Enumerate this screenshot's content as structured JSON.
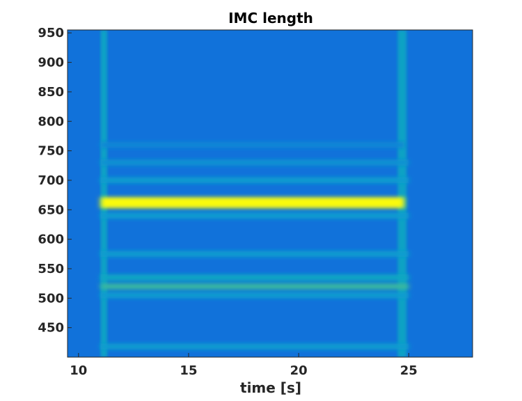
{
  "chart_data": {
    "type": "heatmap",
    "title": "IMC length",
    "xlabel": "time [s]",
    "ylabel": "",
    "xlim": [
      9.5,
      27.9
    ],
    "ylim": [
      400,
      955
    ],
    "x_ticks": [
      10,
      15,
      20,
      25
    ],
    "y_ticks": [
      450,
      500,
      550,
      600,
      650,
      700,
      750,
      800,
      850,
      900,
      950
    ],
    "colormap": "parula",
    "background_level": 0.25,
    "events": [
      {
        "x_start": 11.0,
        "x_end": 11.3,
        "level": 0.5
      },
      {
        "x_start": 24.5,
        "x_end": 24.9,
        "level": 0.5
      }
    ],
    "bands": [
      {
        "y": 662,
        "x_start": 11.0,
        "x_end": 24.8,
        "level": 1.0
      },
      {
        "y": 520,
        "x_start": 11.0,
        "x_end": 25.0,
        "level": 0.6
      },
      {
        "y": 535,
        "x_start": 11.0,
        "x_end": 25.0,
        "level": 0.5
      },
      {
        "y": 505,
        "x_start": 11.0,
        "x_end": 25.0,
        "level": 0.45
      },
      {
        "y": 575,
        "x_start": 11.0,
        "x_end": 25.0,
        "level": 0.45
      },
      {
        "y": 700,
        "x_start": 11.0,
        "x_end": 25.0,
        "level": 0.45
      },
      {
        "y": 730,
        "x_start": 11.0,
        "x_end": 25.0,
        "level": 0.4
      },
      {
        "y": 760,
        "x_start": 11.0,
        "x_end": 24.8,
        "level": 0.35
      },
      {
        "y": 418,
        "x_start": 11.0,
        "x_end": 25.0,
        "level": 0.45
      },
      {
        "y": 640,
        "x_start": 11.0,
        "x_end": 25.0,
        "level": 0.45
      }
    ],
    "colors": {
      "background": "#1a9fd2",
      "axis": "#262626"
    }
  }
}
